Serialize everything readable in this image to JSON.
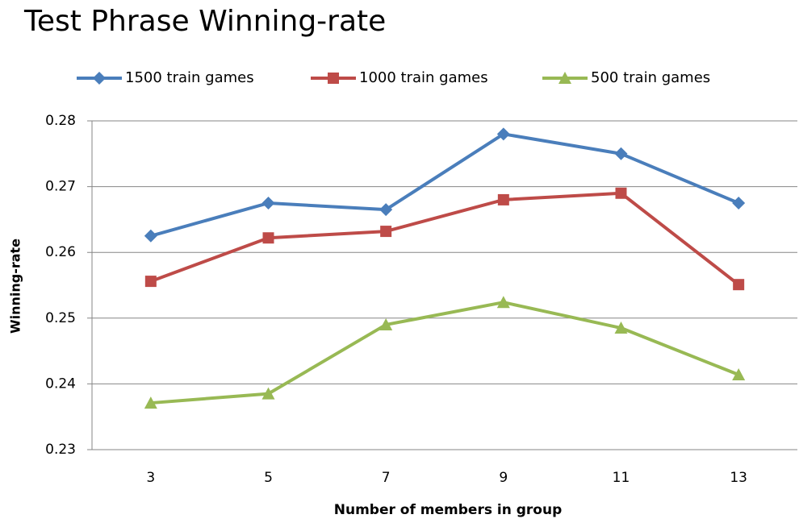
{
  "chart_data": {
    "type": "line",
    "title": "Test Phrase Winning-rate",
    "x_label": "Number of members in group",
    "y_label": "Winning-rate",
    "categories": [
      "3",
      "5",
      "7",
      "9",
      "11",
      "13"
    ],
    "series": [
      {
        "name": "1500 train games",
        "color": "#4a7ebb",
        "marker": "diamond",
        "values": [
          0.2625,
          0.2675,
          0.2665,
          0.278,
          0.275,
          0.2675
        ]
      },
      {
        "name": "1000 train games",
        "color": "#be4b48",
        "marker": "square",
        "values": [
          0.2556,
          0.2622,
          0.2632,
          0.268,
          0.269,
          0.2551
        ]
      },
      {
        "name": "500 train games",
        "color": "#98b954",
        "marker": "triangle",
        "values": [
          0.2371,
          0.2385,
          0.249,
          0.2524,
          0.2485,
          0.2414
        ]
      }
    ],
    "ylim": [
      0.23,
      0.28
    ],
    "yticks": [
      0.23,
      0.24,
      0.25,
      0.26,
      0.27,
      0.28
    ],
    "grid": true,
    "legend": "top"
  }
}
